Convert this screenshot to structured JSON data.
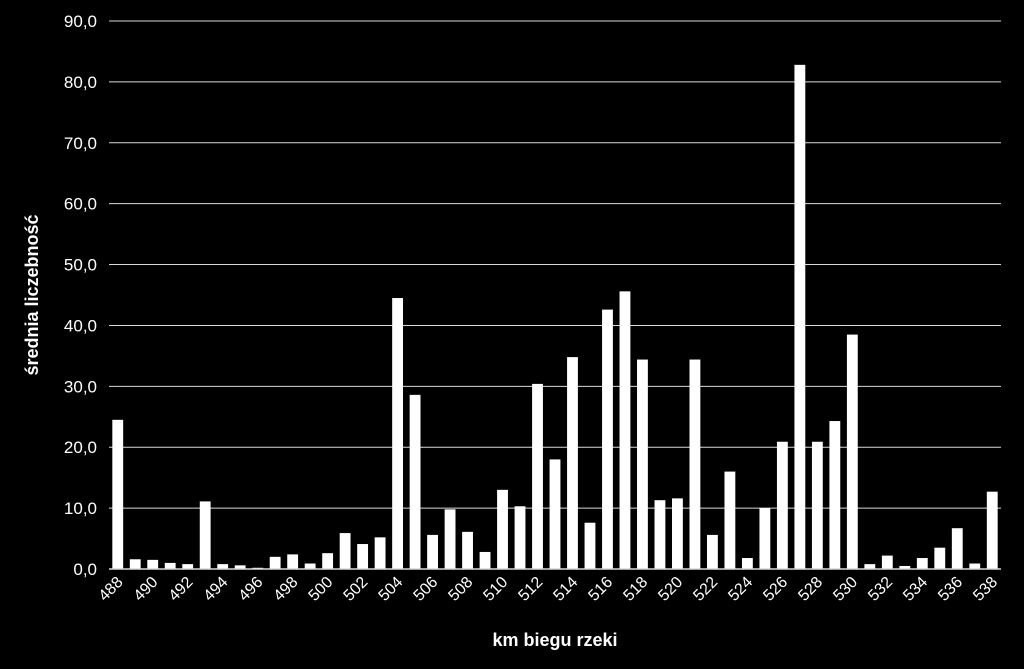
{
  "chart_data": {
    "type": "bar",
    "title": "",
    "xlabel": "km biegu rzeki",
    "ylabel": "średnia liczebność",
    "ylim": [
      0,
      90
    ],
    "yticks": [
      "0,0",
      "10,0",
      "20,0",
      "30,0",
      "40,0",
      "50,0",
      "60,0",
      "70,0",
      "80,0",
      "90,0"
    ],
    "grid": true,
    "legend": "none",
    "bar_color": "#ffffff",
    "grid_color": "#d9d9d9",
    "background": "#000000",
    "categories": [
      "488",
      "489",
      "490",
      "491",
      "492",
      "493",
      "494",
      "495",
      "496",
      "497",
      "498",
      "499",
      "500",
      "501",
      "502",
      "503",
      "504",
      "505",
      "506",
      "507",
      "508",
      "509",
      "510",
      "511",
      "512",
      "513",
      "514",
      "515",
      "516",
      "517",
      "518",
      "519",
      "520",
      "521",
      "522",
      "523",
      "524",
      "525",
      "526",
      "527",
      "528",
      "529",
      "530",
      "531",
      "532",
      "533",
      "534",
      "535",
      "536",
      "537",
      "538"
    ],
    "category_labels": [
      "488",
      "",
      "490",
      "",
      "492",
      "",
      "494",
      "",
      "496",
      "",
      "498",
      "",
      "500",
      "",
      "502",
      "",
      "504",
      "",
      "506",
      "",
      "508",
      "",
      "510",
      "",
      "512",
      "",
      "514",
      "",
      "516",
      "",
      "518",
      "",
      "520",
      "",
      "522",
      "",
      "524",
      "",
      "526",
      "",
      "528",
      "",
      "530",
      "",
      "532",
      "",
      "534",
      "",
      "536",
      "",
      "538"
    ],
    "values": [
      24.5,
      1.6,
      1.5,
      1.0,
      0.8,
      11.1,
      0.8,
      0.6,
      0.2,
      2.0,
      2.4,
      0.9,
      2.6,
      5.9,
      4.1,
      5.2,
      44.5,
      28.6,
      5.6,
      9.8,
      6.1,
      2.8,
      13.0,
      10.3,
      30.4,
      18.0,
      34.8,
      7.6,
      42.6,
      45.6,
      34.4,
      11.3,
      11.6,
      34.4,
      5.6,
      16.0,
      1.8,
      10.0,
      20.9,
      82.8,
      20.9,
      24.3,
      38.5,
      0.8,
      2.2,
      0.5,
      1.8,
      3.5,
      6.7,
      0.9,
      12.7
    ]
  }
}
